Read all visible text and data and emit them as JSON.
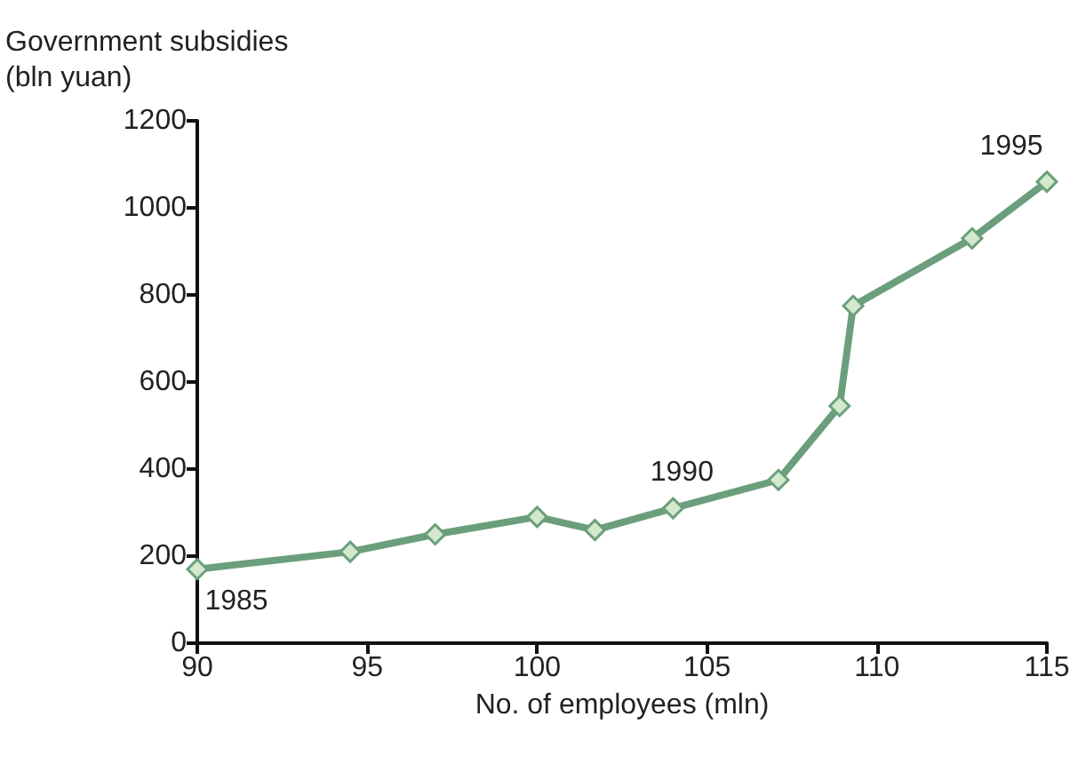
{
  "chart_data": {
    "type": "line",
    "xlabel": "No. of employees (mln)",
    "ylabel": "Government subsidies\n(bln yuan)",
    "x": [
      90,
      94.5,
      97,
      100,
      101.7,
      104,
      107.1,
      108.9,
      109.3,
      112.8,
      115
    ],
    "series": [
      {
        "color": "#6b9f7c",
        "values": [
          170,
          210,
          250,
          290,
          260,
          310,
          375,
          545,
          775,
          930,
          1060
        ]
      }
    ],
    "xlim": [
      90,
      115
    ],
    "xticks": [
      90,
      95,
      100,
      105,
      110,
      115
    ],
    "ylim": [
      0,
      1200
    ],
    "yticks": [
      0,
      200,
      400,
      600,
      800,
      1000,
      1200
    ],
    "marker": "diamond",
    "line_style": "solid",
    "annotations": [
      {
        "text": "1985",
        "x": 90,
        "y": 170
      },
      {
        "text": "1990",
        "x": 104,
        "y": 310
      },
      {
        "text": "1995",
        "x": 115,
        "y": 1060
      }
    ]
  }
}
